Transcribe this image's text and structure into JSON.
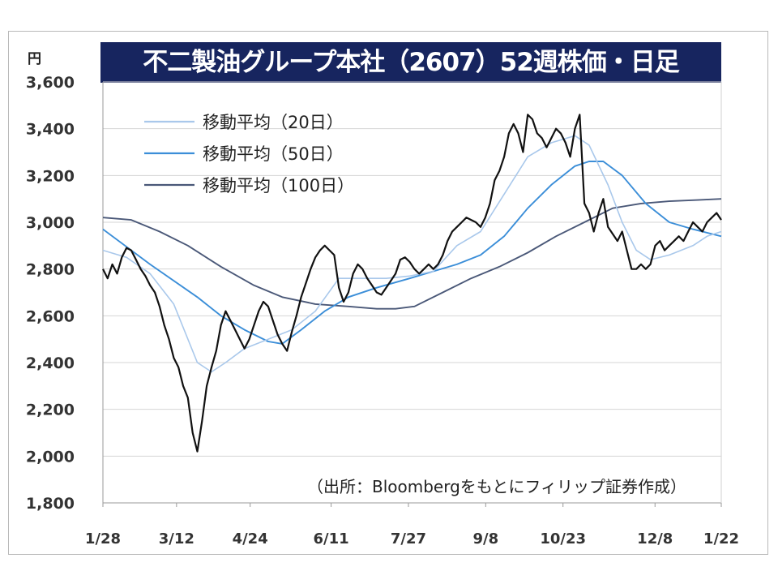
{
  "chart_data": {
    "type": "line",
    "title": "不二製油グループ本社（2607）52週株価・日足",
    "ylabel": "円",
    "source": "（出所：Bloombergをもとにフィリップ証券作成）",
    "ylim": [
      1800,
      3600
    ],
    "yticks": [
      "1,800",
      "2,000",
      "2,200",
      "2,400",
      "2,600",
      "2,800",
      "3,000",
      "3,200",
      "3,400",
      "3,600"
    ],
    "xticks": [
      "1/28",
      "3/12",
      "4/24",
      "6/11",
      "7/27",
      "9/8",
      "10/23",
      "12/8",
      "1/22"
    ],
    "grid": true,
    "legend_position": "top-left",
    "colors": {
      "price": "#111111",
      "ma20": "#a9c8eb",
      "ma50": "#3b8ed8",
      "ma100": "#4a5878",
      "title_bg": "#17255f"
    },
    "series": [
      {
        "name": "",
        "key": "price",
        "points": [
          [
            0,
            2800
          ],
          [
            1,
            2760
          ],
          [
            2,
            2820
          ],
          [
            3,
            2780
          ],
          [
            4,
            2850
          ],
          [
            5,
            2890
          ],
          [
            6,
            2880
          ],
          [
            7,
            2840
          ],
          [
            8,
            2800
          ],
          [
            9,
            2770
          ],
          [
            10,
            2730
          ],
          [
            11,
            2700
          ],
          [
            12,
            2640
          ],
          [
            13,
            2560
          ],
          [
            14,
            2500
          ],
          [
            15,
            2420
          ],
          [
            16,
            2380
          ],
          [
            17,
            2300
          ],
          [
            18,
            2250
          ],
          [
            19,
            2100
          ],
          [
            20,
            2020
          ],
          [
            21,
            2150
          ],
          [
            22,
            2300
          ],
          [
            23,
            2380
          ],
          [
            24,
            2450
          ],
          [
            25,
            2560
          ],
          [
            26,
            2620
          ],
          [
            27,
            2580
          ],
          [
            28,
            2540
          ],
          [
            29,
            2500
          ],
          [
            30,
            2460
          ],
          [
            31,
            2500
          ],
          [
            32,
            2560
          ],
          [
            33,
            2620
          ],
          [
            34,
            2660
          ],
          [
            35,
            2640
          ],
          [
            36,
            2580
          ],
          [
            37,
            2520
          ],
          [
            38,
            2480
          ],
          [
            39,
            2450
          ],
          [
            40,
            2530
          ],
          [
            41,
            2600
          ],
          [
            42,
            2680
          ],
          [
            43,
            2740
          ],
          [
            44,
            2800
          ],
          [
            45,
            2850
          ],
          [
            46,
            2880
          ],
          [
            47,
            2900
          ],
          [
            48,
            2880
          ],
          [
            49,
            2860
          ],
          [
            50,
            2720
          ],
          [
            51,
            2660
          ],
          [
            52,
            2700
          ],
          [
            53,
            2780
          ],
          [
            54,
            2820
          ],
          [
            55,
            2800
          ],
          [
            56,
            2760
          ],
          [
            57,
            2730
          ],
          [
            58,
            2700
          ],
          [
            59,
            2690
          ],
          [
            60,
            2720
          ],
          [
            61,
            2750
          ],
          [
            62,
            2780
          ],
          [
            63,
            2840
          ],
          [
            64,
            2850
          ],
          [
            65,
            2830
          ],
          [
            66,
            2800
          ],
          [
            67,
            2780
          ],
          [
            68,
            2800
          ],
          [
            69,
            2820
          ],
          [
            70,
            2800
          ],
          [
            71,
            2820
          ],
          [
            72,
            2860
          ],
          [
            73,
            2920
          ],
          [
            74,
            2960
          ],
          [
            75,
            2980
          ],
          [
            76,
            3000
          ],
          [
            77,
            3020
          ],
          [
            78,
            3010
          ],
          [
            79,
            3000
          ],
          [
            80,
            2980
          ],
          [
            81,
            3020
          ],
          [
            82,
            3080
          ],
          [
            83,
            3180
          ],
          [
            84,
            3220
          ],
          [
            85,
            3280
          ],
          [
            86,
            3380
          ],
          [
            87,
            3420
          ],
          [
            88,
            3380
          ],
          [
            89,
            3300
          ],
          [
            90,
            3460
          ],
          [
            91,
            3440
          ],
          [
            92,
            3380
          ],
          [
            93,
            3360
          ],
          [
            94,
            3320
          ],
          [
            95,
            3360
          ],
          [
            96,
            3400
          ],
          [
            97,
            3380
          ],
          [
            98,
            3340
          ],
          [
            99,
            3280
          ],
          [
            100,
            3400
          ],
          [
            101,
            3460
          ],
          [
            102,
            3080
          ],
          [
            103,
            3040
          ],
          [
            104,
            2960
          ],
          [
            105,
            3040
          ],
          [
            106,
            3100
          ],
          [
            107,
            2980
          ],
          [
            108,
            2950
          ],
          [
            109,
            2920
          ],
          [
            110,
            2960
          ],
          [
            111,
            2880
          ],
          [
            112,
            2800
          ],
          [
            113,
            2800
          ],
          [
            114,
            2820
          ],
          [
            115,
            2800
          ],
          [
            116,
            2820
          ],
          [
            117,
            2900
          ],
          [
            118,
            2920
          ],
          [
            119,
            2880
          ],
          [
            120,
            2900
          ],
          [
            121,
            2920
          ],
          [
            122,
            2940
          ],
          [
            123,
            2920
          ],
          [
            124,
            2960
          ],
          [
            125,
            3000
          ],
          [
            126,
            2980
          ],
          [
            127,
            2960
          ],
          [
            128,
            3000
          ],
          [
            129,
            3020
          ],
          [
            130,
            3040
          ],
          [
            131,
            3010
          ]
        ]
      },
      {
        "name": "移動平均（20日）",
        "key": "ma20",
        "points": [
          [
            0,
            2880
          ],
          [
            5,
            2850
          ],
          [
            10,
            2780
          ],
          [
            15,
            2650
          ],
          [
            20,
            2400
          ],
          [
            23,
            2360
          ],
          [
            26,
            2400
          ],
          [
            30,
            2460
          ],
          [
            35,
            2500
          ],
          [
            40,
            2540
          ],
          [
            45,
            2620
          ],
          [
            50,
            2760
          ],
          [
            55,
            2760
          ],
          [
            60,
            2760
          ],
          [
            65,
            2770
          ],
          [
            70,
            2790
          ],
          [
            75,
            2900
          ],
          [
            80,
            2960
          ],
          [
            85,
            3120
          ],
          [
            90,
            3280
          ],
          [
            95,
            3340
          ],
          [
            100,
            3370
          ],
          [
            103,
            3330
          ],
          [
            107,
            3160
          ],
          [
            110,
            3000
          ],
          [
            113,
            2880
          ],
          [
            116,
            2840
          ],
          [
            120,
            2860
          ],
          [
            125,
            2900
          ],
          [
            128,
            2940
          ],
          [
            131,
            2960
          ]
        ]
      },
      {
        "name": "移動平均（50日）",
        "key": "ma50",
        "points": [
          [
            0,
            2970
          ],
          [
            10,
            2820
          ],
          [
            20,
            2680
          ],
          [
            25,
            2600
          ],
          [
            30,
            2540
          ],
          [
            35,
            2490
          ],
          [
            38,
            2480
          ],
          [
            42,
            2540
          ],
          [
            47,
            2620
          ],
          [
            52,
            2680
          ],
          [
            58,
            2720
          ],
          [
            65,
            2760
          ],
          [
            70,
            2790
          ],
          [
            75,
            2820
          ],
          [
            80,
            2860
          ],
          [
            85,
            2940
          ],
          [
            90,
            3060
          ],
          [
            95,
            3160
          ],
          [
            100,
            3240
          ],
          [
            103,
            3260
          ],
          [
            106,
            3260
          ],
          [
            110,
            3200
          ],
          [
            115,
            3080
          ],
          [
            120,
            3000
          ],
          [
            125,
            2970
          ],
          [
            131,
            2940
          ]
        ]
      },
      {
        "name": "移動平均（100日）",
        "key": "ma100",
        "points": [
          [
            0,
            3020
          ],
          [
            6,
            3010
          ],
          [
            12,
            2960
          ],
          [
            18,
            2900
          ],
          [
            25,
            2810
          ],
          [
            32,
            2730
          ],
          [
            38,
            2680
          ],
          [
            45,
            2650
          ],
          [
            52,
            2640
          ],
          [
            58,
            2630
          ],
          [
            62,
            2630
          ],
          [
            66,
            2640
          ],
          [
            72,
            2700
          ],
          [
            78,
            2760
          ],
          [
            84,
            2810
          ],
          [
            90,
            2870
          ],
          [
            96,
            2940
          ],
          [
            102,
            3000
          ],
          [
            108,
            3060
          ],
          [
            114,
            3080
          ],
          [
            120,
            3090
          ],
          [
            126,
            3095
          ],
          [
            131,
            3100
          ]
        ]
      }
    ]
  }
}
